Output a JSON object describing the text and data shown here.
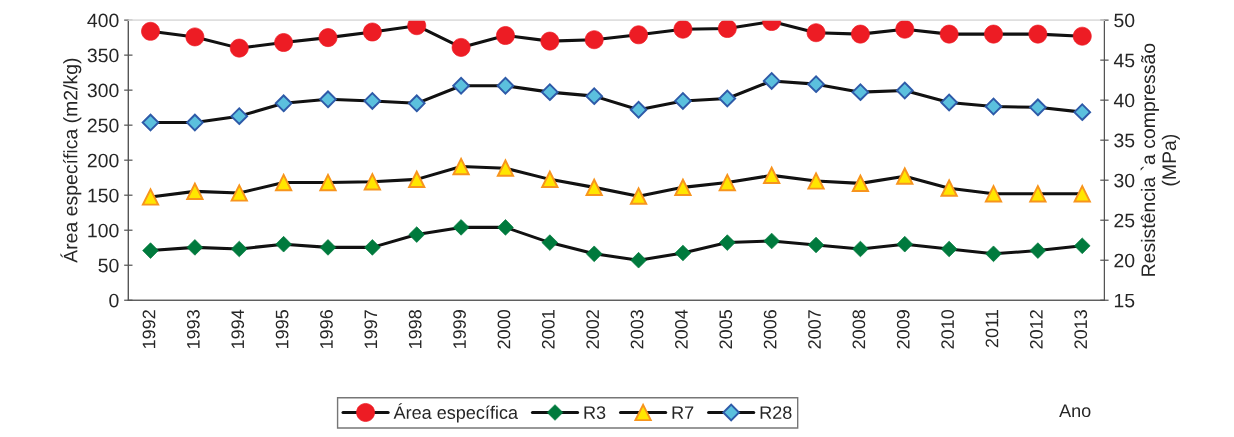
{
  "chart_data": {
    "type": "line",
    "xlabel": "Ano",
    "ylabel": "Área específica (m2/kg)",
    "y2label": "Resistência `a compressão\n(MPa)",
    "categories": [
      "1992",
      "1993",
      "1994",
      "1995",
      "1996",
      "1997",
      "1998",
      "1999",
      "2000",
      "2001",
      "2002",
      "2003",
      "2004",
      "2005",
      "2006",
      "2007",
      "2008",
      "2009",
      "2010",
      "2011",
      "2012",
      "2013"
    ],
    "series": [
      {
        "name": "Área específica",
        "color": "#ed1c24",
        "marker": "circle",
        "values": [
          384,
          376,
          360,
          368,
          375,
          383,
          392,
          361,
          378,
          370,
          372,
          379,
          387,
          388,
          398,
          382,
          380,
          387,
          380,
          380,
          380,
          377
        ]
      },
      {
        "name": "R3",
        "color": "#007a3d",
        "marker": "diamond",
        "axis": "y2",
        "values": [
          21.2,
          21.6,
          21.4,
          22.0,
          21.6,
          21.6,
          23.2,
          24.1,
          24.1,
          22.2,
          20.8,
          20.0,
          20.9,
          22.2,
          22.4,
          21.9,
          21.4,
          22.0,
          21.4,
          20.8,
          21.2,
          21.8
        ]
      },
      {
        "name": "R7",
        "color": "#ffe600",
        "marker": "triangle",
        "axis": "y2",
        "values": [
          27.9,
          28.6,
          28.4,
          29.7,
          29.7,
          29.8,
          30.1,
          31.7,
          31.5,
          30.1,
          29.1,
          28.0,
          29.1,
          29.7,
          30.6,
          29.9,
          29.6,
          30.5,
          29.0,
          28.3,
          28.3,
          28.3
        ]
      },
      {
        "name": "R28",
        "color": "#5bc0de",
        "marker": "diamond",
        "axis": "y2",
        "values": [
          37.2,
          37.2,
          38.0,
          39.6,
          40.1,
          39.9,
          39.6,
          41.8,
          41.8,
          41.0,
          40.5,
          38.8,
          39.9,
          40.2,
          42.4,
          42.0,
          41.0,
          41.2,
          39.7,
          39.2,
          39.1,
          38.5
        ]
      }
    ],
    "ylim": [
      0,
      400
    ],
    "yticks": [
      0,
      50,
      100,
      150,
      200,
      250,
      300,
      350,
      400
    ],
    "y2lim": [
      15,
      50
    ],
    "y2ticks": [
      15,
      20,
      25,
      30,
      35,
      40,
      45,
      50
    ],
    "grid": false,
    "legend": "bottom",
    "line_style": "solid"
  }
}
